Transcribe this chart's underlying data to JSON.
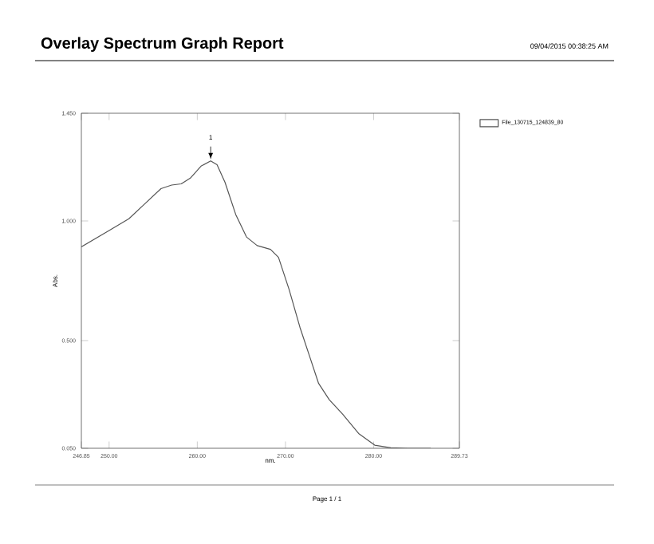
{
  "chart_data": {
    "type": "line",
    "title": "Overlay Spectrum Graph Report",
    "subtitle": "09/04/2015 00:38:25 AM",
    "xlabel": "nm.",
    "ylabel": "Abs.",
    "annotations": [
      {
        "text": "1",
        "x": 261.52,
        "y": 1.251
      },
      "Page 1 / 1"
    ],
    "x": [
      246.85,
      250.0,
      252.24,
      254.06,
      255.88,
      257.09,
      258.18,
      259.21,
      260.42,
      261.52,
      262.24,
      263.15,
      264.36,
      265.58,
      266.79,
      268.3,
      269.21,
      270.42,
      271.64,
      272.85,
      273.76,
      274.97,
      276.48,
      278.3,
      280.12,
      281.94,
      283.76,
      286.48
    ],
    "series": [
      {
        "name": "File_130715_124839_80",
        "color": "#555555",
        "values": [
          0.892,
          0.96,
          1.009,
          1.072,
          1.135,
          1.15,
          1.155,
          1.179,
          1.229,
          1.251,
          1.235,
          1.161,
          1.027,
          0.933,
          0.897,
          0.881,
          0.848,
          0.713,
          0.556,
          0.422,
          0.321,
          0.253,
          0.193,
          0.112,
          0.063,
          0.052,
          0.05,
          0.05
        ]
      }
    ],
    "xlim": [
      246.85,
      289.73
    ],
    "xticks": [
      246.85,
      {
        "value": 250,
        "label": "250.00"
      },
      {
        "value": 260,
        "label": "260.00"
      },
      {
        "value": 270,
        "label": "270.00"
      },
      {
        "value": 280,
        "label": "280.00"
      },
      289.73
    ],
    "ylim": [
      0.05,
      1.45
    ],
    "yticks": [
      {
        "value": 0.05,
        "label": "0.050"
      },
      {
        "value": 0.5,
        "label": "0.500"
      },
      {
        "value": 1,
        "label": "1.000"
      },
      {
        "value": 1.45,
        "label": "1.450"
      }
    ],
    "grid": false,
    "legend": "top right",
    "marker": "none",
    "line_style": "solid"
  }
}
